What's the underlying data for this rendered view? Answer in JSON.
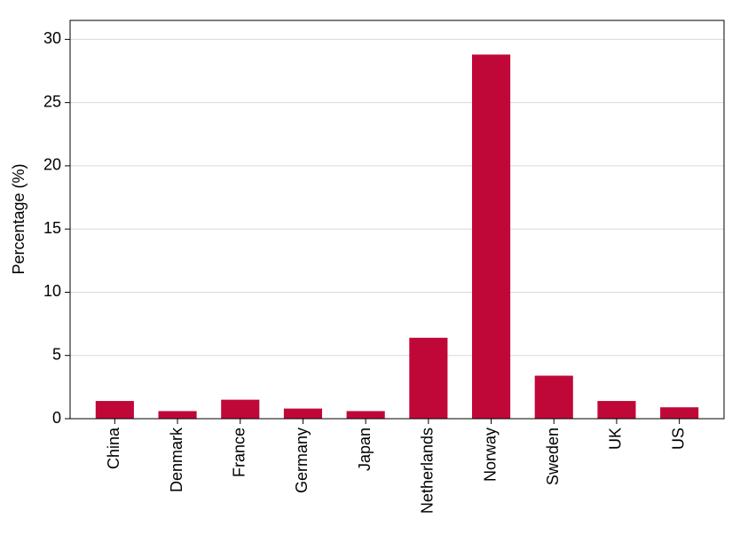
{
  "chart_data": {
    "type": "bar",
    "y_label": "Percentage (%)",
    "categories": [
      "China",
      "Denmark",
      "France",
      "Germany",
      "Japan",
      "Netherlands",
      "Norway",
      "Sweden",
      "UK",
      "US"
    ],
    "values": [
      1.4,
      0.6,
      1.5,
      0.8,
      0.6,
      6.4,
      28.8,
      3.4,
      1.4,
      0.9
    ],
    "color": "#c00838",
    "ylim": [
      0,
      31.5
    ],
    "yticks": [
      0,
      5,
      10,
      15,
      20,
      25,
      30
    ],
    "grid": true
  }
}
